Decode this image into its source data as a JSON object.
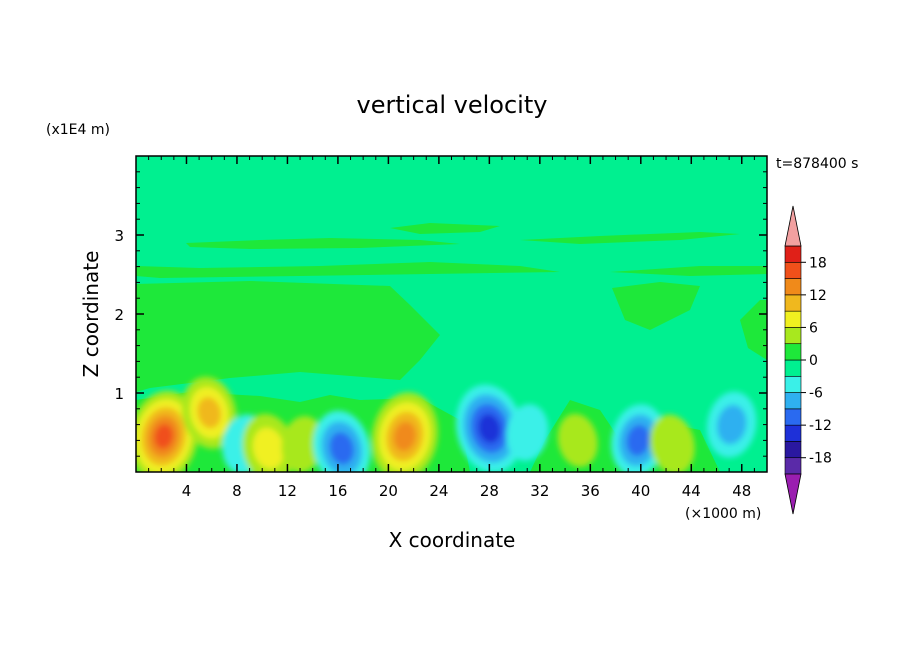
{
  "chart_data": {
    "type": "heatmap",
    "title": "vertical velocity",
    "xlabel": "X coordinate",
    "ylabel": "Z coordinate",
    "x_unit": "(×1000 m)",
    "y_unit": "(x1E4 m)",
    "time_label": "t=878400 s",
    "xlim": [
      0,
      50
    ],
    "ylim": [
      0,
      4
    ],
    "x_ticks": [
      4,
      8,
      12,
      16,
      20,
      24,
      28,
      32,
      36,
      40,
      44,
      48
    ],
    "y_ticks": [
      1,
      2,
      3
    ],
    "colorbar": {
      "levels": [
        -21,
        -18,
        -15,
        -12,
        -9,
        -6,
        -3,
        0,
        3,
        6,
        9,
        12,
        15,
        18,
        21
      ],
      "tick_labels": [
        18,
        12,
        6,
        0,
        -6,
        -12,
        -18
      ],
      "colors": [
        "#9a1eb0",
        "#5a2aa8",
        "#2a18a0",
        "#1e30d8",
        "#2a6af0",
        "#2fb0f0",
        "#3af0e8",
        "#00f090",
        "#1ee83a",
        "#a8e81e",
        "#f0f020",
        "#f0b81e",
        "#f08a1a",
        "#f0501a",
        "#e02018",
        "#f2a0a0"
      ],
      "under_color": "#9a1eb0",
      "over_color": "#f2a0a0"
    },
    "features": [
      {
        "x": 2.2,
        "z": 0.45,
        "value": 15
      },
      {
        "x": 5.8,
        "z": 0.75,
        "value": 9
      },
      {
        "x": 8.6,
        "z": 0.35,
        "value": -5
      },
      {
        "x": 10.5,
        "z": 0.3,
        "value": 8
      },
      {
        "x": 13.2,
        "z": 0.35,
        "value": 4
      },
      {
        "x": 16.3,
        "z": 0.3,
        "value": -10
      },
      {
        "x": 21.3,
        "z": 0.45,
        "value": 14
      },
      {
        "x": 28.0,
        "z": 0.55,
        "value": -14
      },
      {
        "x": 31.0,
        "z": 0.5,
        "value": -4
      },
      {
        "x": 35.0,
        "z": 0.4,
        "value": 3
      },
      {
        "x": 39.8,
        "z": 0.4,
        "value": -9
      },
      {
        "x": 42.5,
        "z": 0.35,
        "value": 5
      },
      {
        "x": 47.2,
        "z": 0.6,
        "value": -7
      }
    ]
  }
}
